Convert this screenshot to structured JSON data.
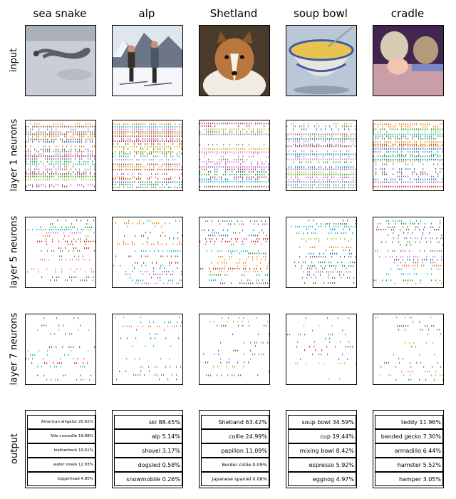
{
  "column_titles": [
    "sea snake",
    "alp",
    "Shetland",
    "soup bowl",
    "cradle"
  ],
  "row_labels": [
    "input",
    "layer 1 neurons",
    "layer 5 neurons",
    "layer 7 neurons",
    "output"
  ],
  "input_images": [
    "sea-snake-photo",
    "alp-photo",
    "shetland-dog-photo",
    "soup-bowl-photo",
    "cradle-baby-photo"
  ],
  "colors": [
    "#1f77b4",
    "#ff7f0e",
    "#2ca02c",
    "#d62728",
    "#9467bd",
    "#8c564b",
    "#e377c2",
    "#7f7f7f",
    "#bcbd22",
    "#17becf"
  ],
  "chart_data": {
    "type": "raster",
    "layer_density": [
      0.85,
      0.45,
      0.25
    ],
    "outputs": [
      [
        {
          "text": "American alligator 20.62%"
        },
        {
          "text": "Nile crocodile 19.88%"
        },
        {
          "text": "leatherback 19.61%"
        },
        {
          "text": "water snake 12.93%"
        },
        {
          "text": "loggerhead 4.80%"
        }
      ],
      [
        {
          "text": "ski 88.45%"
        },
        {
          "text": "alp 5.14%"
        },
        {
          "text": "shovel 3.17%"
        },
        {
          "text": "dogsled 0.58%"
        },
        {
          "text": "snowmobile 0.26%"
        }
      ],
      [
        {
          "text": "Shetland 63.42%"
        },
        {
          "text": "collie 24.99%"
        },
        {
          "text": "papillon 11.09%"
        },
        {
          "text": "Border collie 0.09%"
        },
        {
          "text": "Japanese spaniel 0.08%"
        }
      ],
      [
        {
          "text": "soup bowl 34.59%"
        },
        {
          "text": "cup 19.44%"
        },
        {
          "text": "mixing bowl 8.42%"
        },
        {
          "text": "espresso 5.92%"
        },
        {
          "text": "eggnog 4.97%"
        }
      ],
      [
        {
          "text": "teddy 11.96%"
        },
        {
          "text": "banded gecko 7.30%"
        },
        {
          "text": "armadillo 6.44%"
        },
        {
          "text": "hamster 5.52%"
        },
        {
          "text": "hamper 3.05%"
        }
      ]
    ]
  }
}
